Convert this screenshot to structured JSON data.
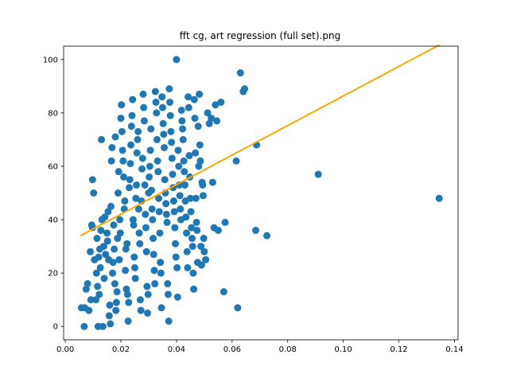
{
  "chart_data": {
    "type": "scatter",
    "title": "fft cg, art regression (full set).png",
    "xlabel": "",
    "ylabel": "",
    "xlim": [
      -0.0006,
      0.1413
    ],
    "ylim": [
      -5,
      105
    ],
    "x_ticks": [
      0.0,
      0.02,
      0.04,
      0.06,
      0.08,
      0.1,
      0.12,
      0.14
    ],
    "x_tick_labels": [
      "0.00",
      "0.02",
      "0.04",
      "0.06",
      "0.08",
      "0.10",
      "0.12",
      "0.14"
    ],
    "y_ticks": [
      0,
      20,
      40,
      60,
      80,
      100
    ],
    "y_tick_labels": [
      "0",
      "20",
      "40",
      "60",
      "80",
      "100"
    ],
    "grid": false,
    "colors": {
      "points": "#1f77b4",
      "regression": "#ffa500"
    },
    "regression_line": {
      "x": [
        0.0055,
        0.1346
      ],
      "y": [
        34,
        105.5
      ]
    },
    "series": [
      {
        "points": [
          [
            0.0058,
            7
          ],
          [
            0.0068,
            0
          ],
          [
            0.007,
            7
          ],
          [
            0.0075,
            14
          ],
          [
            0.008,
            16
          ],
          [
            0.0085,
            6
          ],
          [
            0.009,
            28
          ],
          [
            0.0092,
            10
          ],
          [
            0.0095,
            38
          ],
          [
            0.0098,
            37
          ],
          [
            0.0098,
            55
          ],
          [
            0.0102,
            50
          ],
          [
            0.0105,
            25
          ],
          [
            0.011,
            10
          ],
          [
            0.0112,
            20
          ],
          [
            0.0114,
            33
          ],
          [
            0.0116,
            15
          ],
          [
            0.0118,
            0
          ],
          [
            0.012,
            26
          ],
          [
            0.0122,
            12
          ],
          [
            0.0124,
            29
          ],
          [
            0.0126,
            22
          ],
          [
            0.0128,
            36
          ],
          [
            0.013,
            70
          ],
          [
            0.0132,
            40
          ],
          [
            0.0135,
            0
          ],
          [
            0.0138,
            30
          ],
          [
            0.014,
            18
          ],
          [
            0.0142,
            41
          ],
          [
            0.0145,
            27
          ],
          [
            0.015,
            35
          ],
          [
            0.0152,
            32
          ],
          [
            0.0154,
            43
          ],
          [
            0.0156,
            25
          ],
          [
            0.0158,
            4
          ],
          [
            0.016,
            8
          ],
          [
            0.0162,
            1
          ],
          [
            0.0164,
            45
          ],
          [
            0.0166,
            62
          ],
          [
            0.0168,
            67
          ],
          [
            0.017,
            20
          ],
          [
            0.0172,
            24
          ],
          [
            0.0174,
            38
          ],
          [
            0.0176,
            29
          ],
          [
            0.0178,
            16
          ],
          [
            0.018,
            71
          ],
          [
            0.0182,
            6
          ],
          [
            0.0184,
            9
          ],
          [
            0.0186,
            13
          ],
          [
            0.0188,
            33
          ],
          [
            0.019,
            50
          ],
          [
            0.0192,
            58
          ],
          [
            0.0194,
            25
          ],
          [
            0.0196,
            40
          ],
          [
            0.0198,
            35
          ],
          [
            0.02,
            78
          ],
          [
            0.0202,
            83
          ],
          [
            0.0204,
            73
          ],
          [
            0.0206,
            66
          ],
          [
            0.0208,
            62
          ],
          [
            0.021,
            56
          ],
          [
            0.0212,
            44
          ],
          [
            0.0214,
            47
          ],
          [
            0.0216,
            21
          ],
          [
            0.0218,
            29
          ],
          [
            0.022,
            14
          ],
          [
            0.0222,
            31
          ],
          [
            0.0224,
            12
          ],
          [
            0.0226,
            2
          ],
          [
            0.0228,
            9
          ],
          [
            0.023,
            52
          ],
          [
            0.0232,
            55
          ],
          [
            0.0234,
            61
          ],
          [
            0.0236,
            68
          ],
          [
            0.0238,
            75
          ],
          [
            0.024,
            79
          ],
          [
            0.0242,
            85
          ],
          [
            0.0244,
            40
          ],
          [
            0.0246,
            38
          ],
          [
            0.0248,
            26
          ],
          [
            0.025,
            22
          ],
          [
            0.0252,
            18
          ],
          [
            0.0254,
            48
          ],
          [
            0.0256,
            53
          ],
          [
            0.0258,
            65
          ],
          [
            0.026,
            70
          ],
          [
            0.0262,
            73
          ],
          [
            0.0264,
            44
          ],
          [
            0.0266,
            35
          ],
          [
            0.0268,
            31
          ],
          [
            0.027,
            10
          ],
          [
            0.0272,
            6
          ],
          [
            0.0274,
            47
          ],
          [
            0.0276,
            59
          ],
          [
            0.0278,
            63
          ],
          [
            0.028,
            87
          ],
          [
            0.0282,
            82
          ],
          [
            0.0284,
            77
          ],
          [
            0.0286,
            53
          ],
          [
            0.0288,
            42
          ],
          [
            0.029,
            37
          ],
          [
            0.0292,
            28
          ],
          [
            0.0294,
            15
          ],
          [
            0.0296,
            5
          ],
          [
            0.0298,
            12
          ],
          [
            0.03,
            50
          ],
          [
            0.0302,
            56
          ],
          [
            0.0304,
            60
          ],
          [
            0.0306,
            66
          ],
          [
            0.0308,
            74
          ],
          [
            0.031,
            51
          ],
          [
            0.0312,
            44
          ],
          [
            0.0314,
            40
          ],
          [
            0.0316,
            33
          ],
          [
            0.0318,
            27
          ],
          [
            0.032,
            21
          ],
          [
            0.0322,
            16
          ],
          [
            0.0324,
            88
          ],
          [
            0.0326,
            84
          ],
          [
            0.0328,
            80
          ],
          [
            0.033,
            70
          ],
          [
            0.0332,
            62
          ],
          [
            0.0334,
            58
          ],
          [
            0.0336,
            48
          ],
          [
            0.0338,
            43
          ],
          [
            0.034,
            35
          ],
          [
            0.0342,
            24
          ],
          [
            0.0344,
            20
          ],
          [
            0.0346,
            7
          ],
          [
            0.0348,
            86
          ],
          [
            0.035,
            82
          ],
          [
            0.0352,
            76
          ],
          [
            0.0354,
            72
          ],
          [
            0.0356,
            67
          ],
          [
            0.0358,
            55
          ],
          [
            0.036,
            50
          ],
          [
            0.0362,
            46
          ],
          [
            0.0364,
            42
          ],
          [
            0.0366,
            39
          ],
          [
            0.0368,
            16
          ],
          [
            0.037,
            12
          ],
          [
            0.0372,
            2
          ],
          [
            0.0374,
            89
          ],
          [
            0.0376,
            84
          ],
          [
            0.0378,
            79
          ],
          [
            0.038,
            73
          ],
          [
            0.0382,
            69
          ],
          [
            0.0384,
            63
          ],
          [
            0.0386,
            57
          ],
          [
            0.0388,
            52
          ],
          [
            0.039,
            47
          ],
          [
            0.0392,
            43
          ],
          [
            0.0394,
            37
          ],
          [
            0.0396,
            31
          ],
          [
            0.0398,
            26
          ],
          [
            0.04,
            100
          ],
          [
            0.0402,
            22
          ],
          [
            0.0404,
            11
          ],
          [
            0.0406,
            66
          ],
          [
            0.0408,
            60
          ],
          [
            0.041,
            53
          ],
          [
            0.0412,
            49
          ],
          [
            0.0414,
            44
          ],
          [
            0.0416,
            40
          ],
          [
            0.0418,
            81
          ],
          [
            0.042,
            77
          ],
          [
            0.0422,
            74
          ],
          [
            0.0424,
            70
          ],
          [
            0.0426,
            62
          ],
          [
            0.0428,
            58
          ],
          [
            0.043,
            53
          ],
          [
            0.0432,
            47
          ],
          [
            0.0434,
            41
          ],
          [
            0.0436,
            35
          ],
          [
            0.0438,
            28
          ],
          [
            0.044,
            22
          ],
          [
            0.0442,
            86
          ],
          [
            0.0444,
            82
          ],
          [
            0.0446,
            64
          ],
          [
            0.0448,
            56
          ],
          [
            0.045,
            48
          ],
          [
            0.0452,
            43
          ],
          [
            0.0454,
            37
          ],
          [
            0.0456,
            33
          ],
          [
            0.0458,
            30
          ],
          [
            0.046,
            20
          ],
          [
            0.0462,
            14
          ],
          [
            0.0464,
            85
          ],
          [
            0.0466,
            78
          ],
          [
            0.0468,
            65
          ],
          [
            0.047,
            48
          ],
          [
            0.0472,
            39
          ],
          [
            0.0474,
            36
          ],
          [
            0.0476,
            24
          ],
          [
            0.0478,
            75
          ],
          [
            0.048,
            60
          ],
          [
            0.0482,
            87
          ],
          [
            0.0484,
            68
          ],
          [
            0.0486,
            62
          ],
          [
            0.0488,
            30
          ],
          [
            0.049,
            23
          ],
          [
            0.0492,
            54
          ],
          [
            0.0494,
            53
          ],
          [
            0.0496,
            49
          ],
          [
            0.0498,
            33
          ],
          [
            0.05,
            28
          ],
          [
            0.0505,
            25
          ],
          [
            0.0512,
            80
          ],
          [
            0.0518,
            76
          ],
          [
            0.0525,
            78
          ],
          [
            0.053,
            54
          ],
          [
            0.0535,
            37
          ],
          [
            0.054,
            83
          ],
          [
            0.0545,
            77
          ],
          [
            0.055,
            36
          ],
          [
            0.056,
            84
          ],
          [
            0.057,
            13
          ],
          [
            0.0575,
            39
          ],
          [
            0.0615,
            62
          ],
          [
            0.062,
            7
          ],
          [
            0.063,
            95
          ],
          [
            0.064,
            88
          ],
          [
            0.0645,
            89
          ],
          [
            0.0685,
            36
          ],
          [
            0.0688,
            68
          ],
          [
            0.0725,
            34
          ],
          [
            0.091,
            57
          ],
          [
            0.1345,
            48
          ]
        ]
      }
    ]
  }
}
